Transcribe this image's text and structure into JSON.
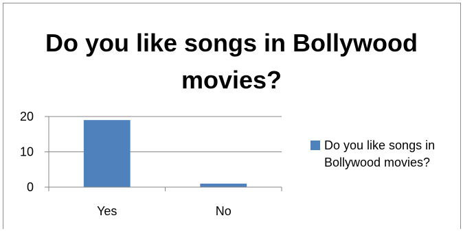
{
  "chart_data": {
    "type": "bar",
    "title": "Do you like songs in Bollywood movies?",
    "categories": [
      "Yes",
      "No"
    ],
    "series": [
      {
        "name": "Do you like songs in Bollywood movies?",
        "values": [
          19,
          1
        ]
      }
    ],
    "y_ticks": [
      "0",
      "10",
      "20"
    ],
    "ylim": [
      0,
      20
    ],
    "grid": true,
    "legend_position": "right",
    "bar_color": "#4f81bd"
  }
}
